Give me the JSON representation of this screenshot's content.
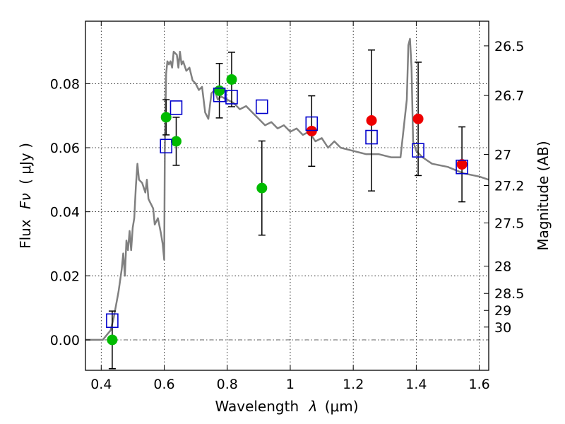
{
  "chart_data": {
    "type": "scatter",
    "xlabel": "Wavelength",
    "xlabel_symbol": "λ",
    "xlabel_unit": "(μm)",
    "ylabel": "Flux",
    "ylabel_symbol": "Fν",
    "ylabel_unit": "( μJy )",
    "y2label": "Magnitude (AB)",
    "xlim": [
      0.35,
      1.63
    ],
    "ylim": [
      -0.0095,
      0.0995
    ],
    "grid": true,
    "x_ticks": [
      0.4,
      0.6,
      0.8,
      1.0,
      1.2,
      1.4,
      1.6
    ],
    "x_tick_labels": [
      "0.4",
      "0.6",
      "0.8",
      "1",
      "1.2",
      "1.4",
      "1.6"
    ],
    "y_ticks": [
      0.0,
      0.02,
      0.04,
      0.06,
      0.08
    ],
    "y_tick_labels": [
      "0.00",
      "0.02",
      "0.04",
      "0.06",
      "0.08"
    ],
    "y2_ticks": [
      {
        "label": "26.5",
        "flux": 0.0918
      },
      {
        "label": "26.7",
        "flux": 0.0763
      },
      {
        "label": "27",
        "flux": 0.0579
      },
      {
        "label": "27.2",
        "flux": 0.0482
      },
      {
        "label": "27.5",
        "flux": 0.0365
      },
      {
        "label": "28",
        "flux": 0.023
      },
      {
        "label": "28.5",
        "flux": 0.0145
      },
      {
        "label": "29",
        "flux": 0.0092
      },
      {
        "label": "30",
        "flux": 0.004
      }
    ],
    "zero_line": 0.0,
    "model_spectrum": {
      "color": "#808080",
      "x": [
        0.35,
        0.405,
        0.43,
        0.44,
        0.455,
        0.465,
        0.47,
        0.475,
        0.48,
        0.485,
        0.49,
        0.495,
        0.5,
        0.505,
        0.51,
        0.515,
        0.52,
        0.53,
        0.54,
        0.545,
        0.55,
        0.555,
        0.56,
        0.565,
        0.57,
        0.58,
        0.59,
        0.595,
        0.6,
        0.602,
        0.606,
        0.61,
        0.615,
        0.62,
        0.625,
        0.63,
        0.64,
        0.645,
        0.65,
        0.655,
        0.66,
        0.67,
        0.68,
        0.69,
        0.7,
        0.71,
        0.72,
        0.73,
        0.74,
        0.75,
        0.76,
        0.77,
        0.78,
        0.8,
        0.82,
        0.84,
        0.86,
        0.88,
        0.9,
        0.92,
        0.94,
        0.96,
        0.98,
        1.0,
        1.02,
        1.04,
        1.06,
        1.08,
        1.1,
        1.12,
        1.14,
        1.16,
        1.2,
        1.24,
        1.28,
        1.32,
        1.35,
        1.37,
        1.375,
        1.38,
        1.385,
        1.39,
        1.4,
        1.42,
        1.45,
        1.5,
        1.55,
        1.6,
        1.63
      ],
      "y": [
        0.0,
        0.0,
        0.003,
        0.007,
        0.015,
        0.022,
        0.027,
        0.02,
        0.031,
        0.028,
        0.034,
        0.028,
        0.035,
        0.038,
        0.048,
        0.055,
        0.05,
        0.049,
        0.046,
        0.05,
        0.044,
        0.043,
        0.042,
        0.041,
        0.036,
        0.038,
        0.033,
        0.03,
        0.025,
        0.06,
        0.083,
        0.087,
        0.086,
        0.087,
        0.085,
        0.09,
        0.089,
        0.085,
        0.09,
        0.086,
        0.087,
        0.084,
        0.085,
        0.081,
        0.08,
        0.078,
        0.079,
        0.071,
        0.069,
        0.077,
        0.078,
        0.075,
        0.076,
        0.075,
        0.074,
        0.072,
        0.073,
        0.071,
        0.069,
        0.067,
        0.068,
        0.066,
        0.067,
        0.065,
        0.066,
        0.064,
        0.065,
        0.062,
        0.063,
        0.06,
        0.062,
        0.06,
        0.059,
        0.058,
        0.058,
        0.057,
        0.057,
        0.075,
        0.092,
        0.094,
        0.085,
        0.062,
        0.059,
        0.057,
        0.055,
        0.054,
        0.052,
        0.051,
        0.05
      ]
    },
    "series": [
      {
        "color": "#00bb00",
        "marker": "circle",
        "points": [
          {
            "x": 0.435,
            "y": 0.0,
            "yerr": 0.009
          },
          {
            "x": 0.606,
            "y": 0.0695,
            "yerr": 0.0055
          },
          {
            "x": 0.638,
            "y": 0.062,
            "yerr": 0.0075
          },
          {
            "x": 0.775,
            "y": 0.0778,
            "yerr": 0.0085
          },
          {
            "x": 0.814,
            "y": 0.0813,
            "yerr": 0.0085
          },
          {
            "x": 0.91,
            "y": 0.0474,
            "yerr": 0.0147
          }
        ]
      },
      {
        "color": "#ee0000",
        "marker": "circle",
        "points": [
          {
            "x": 1.068,
            "y": 0.0652,
            "yerr": 0.011
          },
          {
            "x": 1.258,
            "y": 0.0685,
            "yerr": 0.022
          },
          {
            "x": 1.406,
            "y": 0.069,
            "yerr": 0.0177
          },
          {
            "x": 1.545,
            "y": 0.0548,
            "yerr": 0.0117
          }
        ]
      },
      {
        "color": "#0000cc",
        "marker": "open-square",
        "points": [
          {
            "x": 0.435,
            "y": 0.006
          },
          {
            "x": 0.606,
            "y": 0.0605
          },
          {
            "x": 0.638,
            "y": 0.0725
          },
          {
            "x": 0.775,
            "y": 0.0765
          },
          {
            "x": 0.814,
            "y": 0.0758
          },
          {
            "x": 0.91,
            "y": 0.0728
          },
          {
            "x": 1.068,
            "y": 0.0675
          },
          {
            "x": 1.258,
            "y": 0.0633
          },
          {
            "x": 1.406,
            "y": 0.0592
          },
          {
            "x": 1.545,
            "y": 0.054
          }
        ]
      }
    ]
  }
}
